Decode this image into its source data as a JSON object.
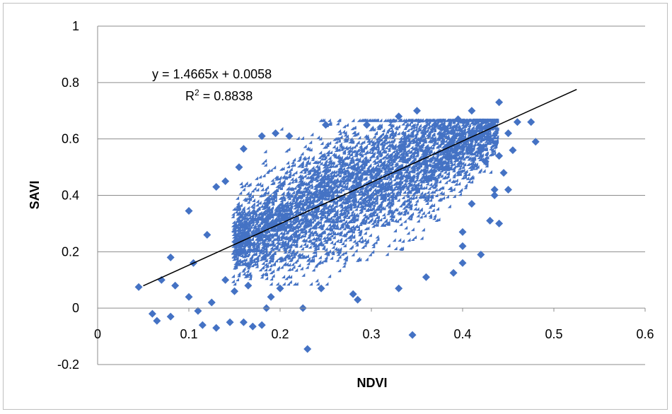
{
  "chart_data": {
    "type": "scatter",
    "xlabel": "NDVI",
    "ylabel": "SAVI",
    "xlim": [
      0,
      0.6
    ],
    "ylim": [
      -0.2,
      1
    ],
    "x_ticks": [
      "0",
      "0.1",
      "0.2",
      "0.3",
      "0.4",
      "0.5",
      "0.6"
    ],
    "y_ticks": [
      "1",
      "0.8",
      "0.6",
      "0.4",
      "0.2",
      "0",
      "-0.2"
    ],
    "grid": "horizontal",
    "legend": "none",
    "marker": "diamond",
    "series_color": "#4472C4",
    "trendline": {
      "slope": 1.4665,
      "intercept": 0.0058,
      "x_range": [
        0.05,
        0.525
      ],
      "color": "#000000",
      "equation_label": "y = 1.4665x + 0.0058",
      "r2_prefix": "R",
      "r2_exp": "2",
      "r2_suffix": " = 0.8838"
    },
    "outliers": [
      [
        0.045,
        0.075
      ],
      [
        0.06,
        -0.02
      ],
      [
        0.065,
        -0.045
      ],
      [
        0.07,
        0.1
      ],
      [
        0.08,
        -0.03
      ],
      [
        0.08,
        0.18
      ],
      [
        0.085,
        0.08
      ],
      [
        0.1,
        0.345
      ],
      [
        0.1,
        0.04
      ],
      [
        0.11,
        -0.01
      ],
      [
        0.115,
        -0.06
      ],
      [
        0.105,
        0.16
      ],
      [
        0.12,
        0.26
      ],
      [
        0.125,
        0.02
      ],
      [
        0.13,
        0.43
      ],
      [
        0.13,
        -0.07
      ],
      [
        0.14,
        0.1
      ],
      [
        0.14,
        0.45
      ],
      [
        0.145,
        -0.05
      ],
      [
        0.15,
        0.06
      ],
      [
        0.155,
        0.5
      ],
      [
        0.16,
        -0.05
      ],
      [
        0.16,
        0.565
      ],
      [
        0.165,
        0.08
      ],
      [
        0.17,
        -0.065
      ],
      [
        0.18,
        -0.06
      ],
      [
        0.18,
        0.61
      ],
      [
        0.185,
        0.0
      ],
      [
        0.19,
        0.04
      ],
      [
        0.195,
        0.62
      ],
      [
        0.2,
        0.07
      ],
      [
        0.21,
        0.61
      ],
      [
        0.225,
        0.0
      ],
      [
        0.23,
        -0.145
      ],
      [
        0.245,
        0.07
      ],
      [
        0.25,
        0.65
      ],
      [
        0.28,
        0.05
      ],
      [
        0.285,
        0.03
      ],
      [
        0.295,
        0.65
      ],
      [
        0.33,
        0.68
      ],
      [
        0.35,
        0.7
      ],
      [
        0.345,
        -0.095
      ],
      [
        0.36,
        0.11
      ],
      [
        0.37,
        0.65
      ],
      [
        0.38,
        0.64
      ],
      [
        0.39,
        0.125
      ],
      [
        0.395,
        0.67
      ],
      [
        0.4,
        0.16
      ],
      [
        0.41,
        0.7
      ],
      [
        0.4,
        0.27
      ],
      [
        0.41,
        0.37
      ],
      [
        0.415,
        0.6
      ],
      [
        0.42,
        0.19
      ],
      [
        0.43,
        0.31
      ],
      [
        0.435,
        0.4
      ],
      [
        0.435,
        0.42
      ],
      [
        0.44,
        0.54
      ],
      [
        0.44,
        0.3
      ],
      [
        0.44,
        0.73
      ],
      [
        0.445,
        0.48
      ],
      [
        0.45,
        0.62
      ],
      [
        0.45,
        0.42
      ],
      [
        0.455,
        0.56
      ],
      [
        0.46,
        0.66
      ],
      [
        0.48,
        0.59
      ],
      [
        0.475,
        0.66
      ],
      [
        0.42,
        0.56
      ],
      [
        0.425,
        0.52
      ],
      [
        0.33,
        0.07
      ],
      [
        0.4,
        0.22
      ]
    ]
  }
}
